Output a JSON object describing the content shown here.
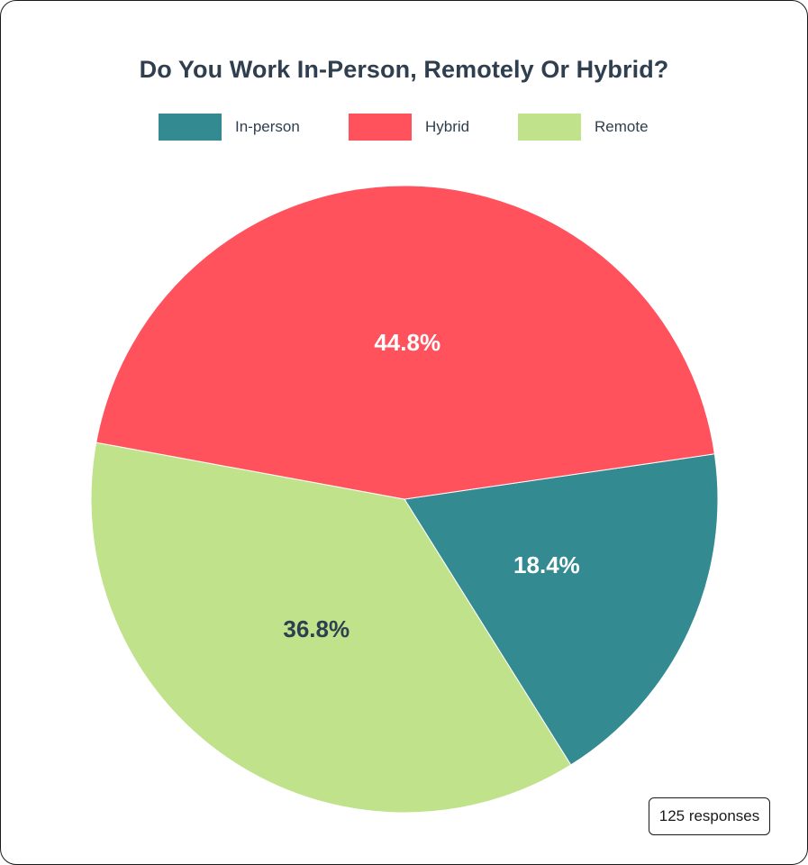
{
  "chart_data": {
    "type": "pie",
    "title": "Do You Work In-Person, Remotely Or Hybrid?",
    "categories": [
      "In-person",
      "Hybrid",
      "Remote"
    ],
    "values": [
      18.4,
      44.8,
      36.8
    ],
    "value_labels": [
      "18.4%",
      "44.8%",
      "36.8%"
    ],
    "colors": [
      "#338b91",
      "#ff525d",
      "#c0e28a"
    ],
    "label_colors": [
      "#ffffff",
      "#ffffff",
      "#2f3f4f"
    ],
    "legend_position": "top",
    "total_responses": 125
  },
  "legend": [
    {
      "label": "In-person",
      "color": "#338b91"
    },
    {
      "label": "Hybrid",
      "color": "#ff525d"
    },
    {
      "label": "Remote",
      "color": "#c0e28a"
    }
  ],
  "badge": {
    "label": "125 responses"
  }
}
